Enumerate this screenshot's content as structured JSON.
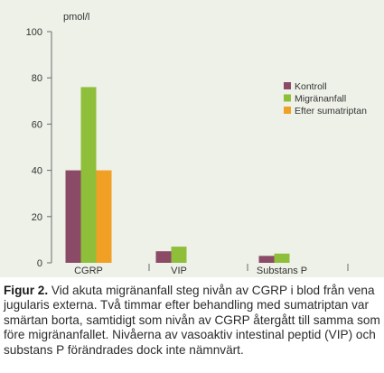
{
  "chart_data": {
    "type": "bar",
    "ylabel": "pmol/l",
    "ylim": [
      0,
      100
    ],
    "yticks": [
      0,
      20,
      40,
      60,
      80,
      100
    ],
    "categories": [
      "CGRP",
      "VIP",
      "Substans P"
    ],
    "series": [
      {
        "name": "Kontroll",
        "color": "#8b4a66",
        "values": [
          40,
          5,
          3
        ]
      },
      {
        "name": "Migränanfall",
        "color": "#8fbf3a",
        "values": [
          76,
          7,
          4
        ]
      },
      {
        "name": "Efter sumatriptan",
        "color": "#f0a024",
        "values": [
          40,
          null,
          null
        ]
      }
    ],
    "legend_position": "right",
    "grid": false
  },
  "caption": {
    "label": "Figur 2.",
    "text": " Vid akuta migränanfall steg nivån av CGRP i blod från vena jugularis externa. Två timmar efter behandling med sumatriptan var smärtan borta, samtidigt som nivån av CGRP återgått till samma som före migränanfallet. Nivåerna av vasoaktiv intestinal peptid (VIP) och substans P förändrades dock inte nämnvärt."
  }
}
